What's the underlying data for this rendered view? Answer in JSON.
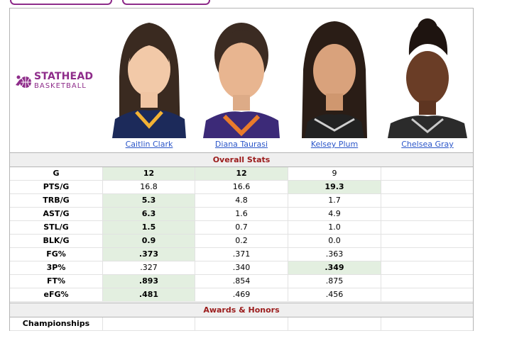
{
  "logo": {
    "line1": "STATHEAD",
    "line2": "BASKETBALL",
    "accent": "#8e2c8a"
  },
  "players": [
    {
      "name": "Caitlin Clark"
    },
    {
      "name": "Diana Taurasi"
    },
    {
      "name": "Kelsey Plum"
    },
    {
      "name": "Chelsea Gray"
    }
  ],
  "sections": {
    "overall": "Overall Stats",
    "awards": "Awards & Honors"
  },
  "stats": [
    {
      "label": "G",
      "values": [
        "12",
        "12",
        "9",
        ""
      ],
      "best": [
        0,
        1
      ]
    },
    {
      "label": "PTS/G",
      "values": [
        "16.8",
        "16.6",
        "19.3",
        ""
      ],
      "best": [
        2
      ]
    },
    {
      "label": "TRB/G",
      "values": [
        "5.3",
        "4.8",
        "1.7",
        ""
      ],
      "best": [
        0
      ]
    },
    {
      "label": "AST/G",
      "values": [
        "6.3",
        "1.6",
        "4.9",
        ""
      ],
      "best": [
        0
      ]
    },
    {
      "label": "STL/G",
      "values": [
        "1.5",
        "0.7",
        "1.0",
        ""
      ],
      "best": [
        0
      ]
    },
    {
      "label": "BLK/G",
      "values": [
        "0.9",
        "0.2",
        "0.0",
        ""
      ],
      "best": [
        0
      ]
    },
    {
      "label": "FG%",
      "values": [
        ".373",
        ".371",
        ".363",
        ""
      ],
      "best": [
        0
      ]
    },
    {
      "label": "3P%",
      "values": [
        ".327",
        ".340",
        ".349",
        ""
      ],
      "best": [
        2
      ]
    },
    {
      "label": "FT%",
      "values": [
        ".893",
        ".854",
        ".875",
        ""
      ],
      "best": [
        0
      ]
    },
    {
      "label": "eFG%",
      "values": [
        ".481",
        ".469",
        ".456",
        ""
      ],
      "best": [
        0
      ]
    }
  ],
  "awards": [
    {
      "label": "Championships",
      "values": [
        "",
        "",
        "",
        ""
      ]
    }
  ],
  "colors": {
    "link": "#2b56c9",
    "section_title": "#9b1b1b",
    "best_bg": "#e3efe0"
  }
}
